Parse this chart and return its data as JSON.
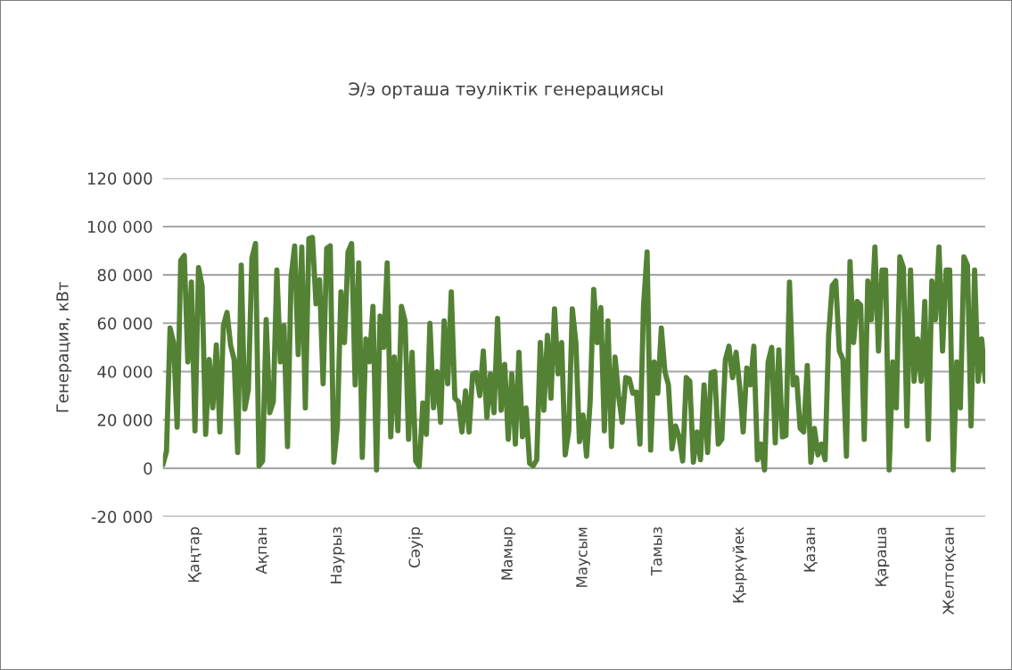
{
  "chart_data": {
    "type": "line",
    "title": "Э/э орташа тәуліктік генерациясы",
    "ylabel": "Генерация, кВт",
    "categories": [
      null,
      null,
      null,
      null,
      null,
      null,
      null,
      null,
      null,
      "Қаңтар",
      null,
      null,
      null,
      null,
      null,
      null,
      null,
      null,
      null,
      null,
      null,
      null,
      null,
      null,
      null,
      null,
      null,
      null,
      "Ақпан",
      null,
      null,
      null,
      null,
      null,
      null,
      null,
      null,
      null,
      null,
      null,
      null,
      null,
      null,
      null,
      null,
      null,
      null,
      null,
      null,
      "Наурыз",
      null,
      null,
      null,
      null,
      null,
      null,
      null,
      null,
      null,
      null,
      null,
      null,
      null,
      null,
      null,
      null,
      null,
      null,
      null,
      null,
      null,
      "Сәуір",
      null,
      null,
      null,
      null,
      null,
      null,
      null,
      null,
      null,
      null,
      null,
      null,
      null,
      null,
      null,
      null,
      null,
      null,
      null,
      null,
      null,
      null,
      null,
      null,
      null,
      "Мамыр",
      null,
      null,
      null,
      null,
      null,
      null,
      null,
      null,
      null,
      null,
      null,
      null,
      null,
      null,
      null,
      null,
      null,
      null,
      null,
      null,
      "Маусым",
      null,
      null,
      null,
      null,
      null,
      null,
      null,
      null,
      null,
      null,
      null,
      null,
      null,
      null,
      null,
      null,
      null,
      null,
      null,
      null,
      "Тамыз",
      null,
      null,
      null,
      null,
      null,
      null,
      null,
      null,
      null,
      null,
      null,
      null,
      null,
      null,
      null,
      null,
      null,
      null,
      null,
      null,
      null,
      null,
      "Қыркүйек",
      null,
      null,
      null,
      null,
      null,
      null,
      null,
      null,
      null,
      null,
      null,
      null,
      null,
      null,
      null,
      null,
      null,
      null,
      null,
      "Қазан",
      null,
      null,
      null,
      null,
      null,
      null,
      null,
      null,
      null,
      null,
      null,
      null,
      null,
      null,
      null,
      null,
      null,
      null,
      null,
      "Қараша",
      null,
      null,
      null,
      null,
      null,
      null,
      null,
      null,
      null,
      null,
      null,
      null,
      null,
      null,
      null,
      null,
      null,
      null,
      "Желтоқсан",
      null,
      null,
      null,
      null,
      null,
      null,
      null,
      null,
      null,
      null
    ],
    "series": [
      {
        "color": "#548235",
        "values": [
          1500,
          7000,
          58000,
          52000,
          17000,
          86000,
          88000,
          44000,
          77000,
          15500,
          83000,
          75500,
          14000,
          45000,
          25000,
          51000,
          15000,
          59000,
          64500,
          51000,
          45000,
          6500,
          84000,
          24500,
          32500,
          87000,
          93000,
          1000,
          3000,
          61500,
          23000,
          27500,
          82000,
          44000,
          59000,
          9000,
          79000,
          92000,
          47000,
          91500,
          25000,
          95000,
          95500,
          68000,
          78000,
          35000,
          91000,
          92000,
          2500,
          17500,
          73000,
          52000,
          89500,
          93000,
          34500,
          85000,
          4500,
          53500,
          44000,
          67000,
          -700,
          63000,
          50000,
          85000,
          13000,
          46000,
          15500,
          67000,
          61000,
          12000,
          48000,
          3000,
          700,
          27000,
          14000,
          60000,
          25000,
          40000,
          19000,
          61000,
          35000,
          73000,
          29000,
          27500,
          15000,
          32000,
          15000,
          39000,
          39500,
          30000,
          48500,
          21000,
          39000,
          23000,
          62000,
          24000,
          43000,
          12000,
          39000,
          10000,
          48000,
          13000,
          25000,
          2000,
          1000,
          3500,
          52000,
          24000,
          55000,
          29000,
          66000,
          39000,
          52000,
          5500,
          15500,
          66000,
          52000,
          11000,
          22000,
          5000,
          27500,
          74000,
          52000,
          66500,
          15500,
          61000,
          9000,
          46000,
          30000,
          19000,
          37500,
          37000,
          31000,
          31500,
          10000,
          67000,
          89500,
          7500,
          44000,
          31000,
          58000,
          40000,
          34500,
          8000,
          17500,
          13000,
          3000,
          37500,
          36000,
          2500,
          15000,
          3500,
          34500,
          6500,
          39500,
          40000,
          10000,
          12000,
          45000,
          50500,
          37500,
          48000,
          34000,
          15000,
          41500,
          34500,
          50500,
          3500,
          10000,
          -700,
          44000,
          50000,
          10500,
          49000,
          13000,
          13500,
          77000,
          34500,
          37500,
          16500,
          15000,
          42500,
          2500,
          16500,
          5500,
          10000,
          3500,
          55000,
          75500,
          77500,
          48500,
          45000,
          5000,
          85500,
          52000,
          69000,
          67500,
          12000,
          77500,
          61500,
          91500,
          48500,
          82000,
          82000,
          -700,
          44000,
          25000,
          87500,
          83000,
          17500,
          82000,
          36000,
          53500,
          36000,
          69000,
          12000,
          77500,
          61500,
          91500,
          48500,
          82000,
          82000,
          -700,
          44000,
          25000,
          87500,
          84000,
          17500,
          82000,
          36000,
          53500,
          36000
        ]
      }
    ],
    "ylim": [
      -20000,
      120000
    ],
    "yticks": [
      {
        "value": -20000,
        "label": "-20 000"
      },
      {
        "value": 0,
        "label": "0"
      },
      {
        "value": 20000,
        "label": "20 000"
      },
      {
        "value": 40000,
        "label": "40 000"
      },
      {
        "value": 60000,
        "label": "60 000"
      },
      {
        "value": 80000,
        "label": "80 000"
      },
      {
        "value": 100000,
        "label": "100 000"
      },
      {
        "value": 120000,
        "label": "120 000"
      }
    ],
    "grid": "y",
    "marker": "none",
    "line_style": "solid"
  }
}
